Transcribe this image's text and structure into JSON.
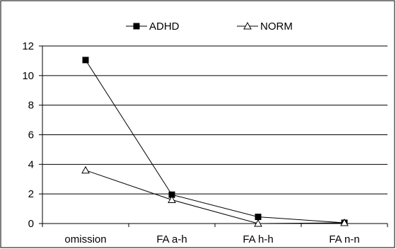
{
  "chart_data": {
    "type": "line",
    "title": "",
    "xlabel": "",
    "ylabel": "",
    "categories": [
      "omission",
      "FA a-h",
      "FA h-h",
      "FA n-n"
    ],
    "series": [
      {
        "name": "ADHD",
        "values": [
          11.05,
          1.95,
          0.45,
          0.05
        ],
        "color": "#000000",
        "marker": "filled-square"
      },
      {
        "name": "NORM",
        "values": [
          3.6,
          1.6,
          0.0,
          0.05
        ],
        "color": "#000000",
        "marker": "open-triangle"
      }
    ],
    "ylim": [
      0,
      12
    ],
    "yticks": [
      0,
      2,
      4,
      6,
      8,
      10,
      12
    ],
    "grid": "horizontal",
    "legend": "top-center",
    "background": "#ffffff",
    "frame_color": "#000000"
  }
}
